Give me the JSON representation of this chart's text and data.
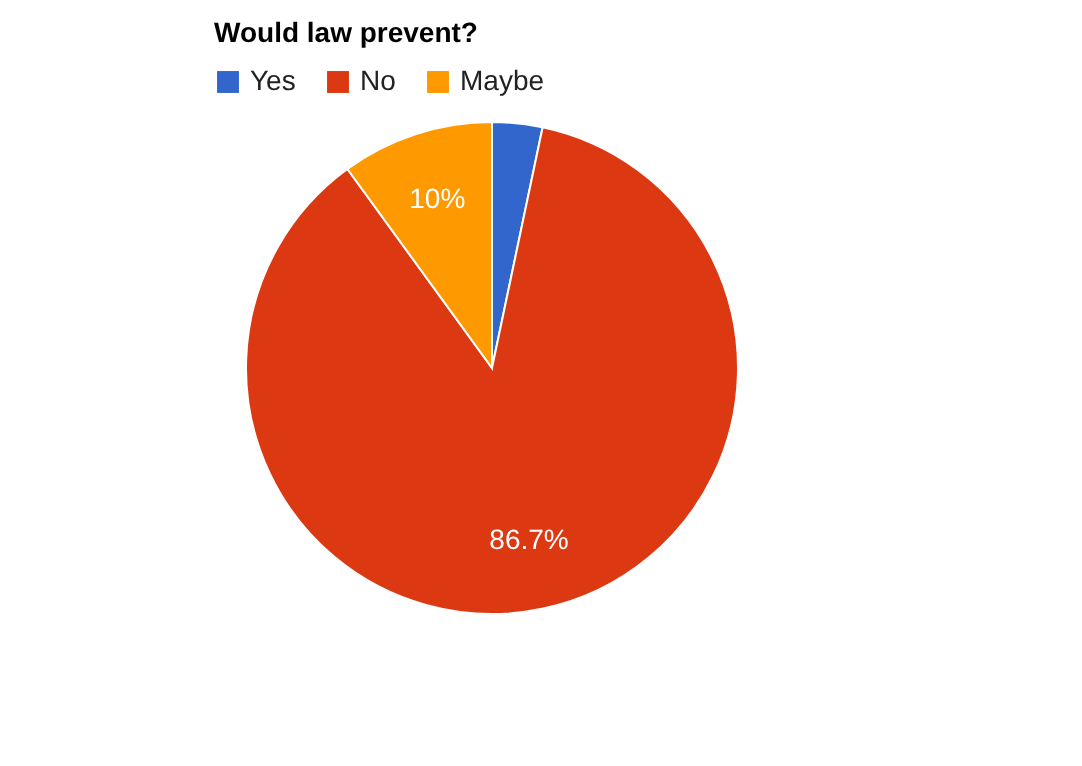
{
  "chart_data": {
    "type": "pie",
    "title": "Would law prevent?",
    "categories": [
      "Yes",
      "No",
      "Maybe"
    ],
    "values": [
      3.3,
      86.7,
      10
    ],
    "colors": [
      "#3366cc",
      "#dc3912",
      "#ff9900"
    ],
    "value_labels": [
      null,
      "86.7%",
      "10%"
    ],
    "legend": "top left"
  }
}
